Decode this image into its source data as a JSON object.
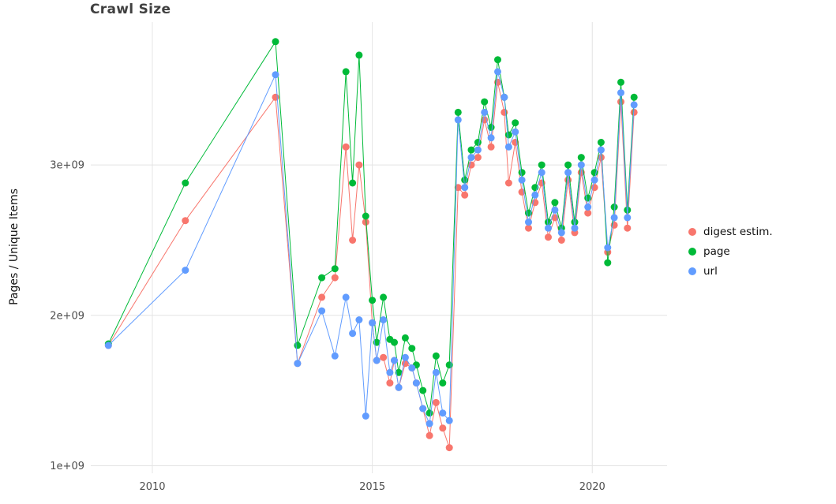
{
  "chart_data": {
    "type": "line",
    "title": "Crawl Size",
    "xlabel": "",
    "ylabel": "Pages / Unique Items",
    "legend_position": "right",
    "grid": true,
    "xlim": [
      2008.6,
      2021.7
    ],
    "ylim": [
      950000000.0,
      3950000000.0
    ],
    "x_ticks": [
      {
        "value": 2010,
        "label": "2010"
      },
      {
        "value": 2015,
        "label": "2015"
      },
      {
        "value": 2020,
        "label": "2020"
      }
    ],
    "y_ticks": [
      {
        "value": 1000000000.0,
        "label": "1e+09"
      },
      {
        "value": 2000000000.0,
        "label": "2e+09"
      },
      {
        "value": 3000000000.0,
        "label": "3e+09"
      }
    ],
    "x": [
      2009.0,
      2010.75,
      2012.8,
      2013.3,
      2013.85,
      2014.15,
      2014.4,
      2014.55,
      2014.7,
      2014.85,
      2015.0,
      2015.1,
      2015.25,
      2015.4,
      2015.5,
      2015.6,
      2015.75,
      2015.9,
      2016.0,
      2016.15,
      2016.3,
      2016.45,
      2016.6,
      2016.75,
      2016.95,
      2017.1,
      2017.25,
      2017.4,
      2017.55,
      2017.7,
      2017.85,
      2018.0,
      2018.1,
      2018.25,
      2018.4,
      2018.55,
      2018.7,
      2018.85,
      2019.0,
      2019.15,
      2019.3,
      2019.45,
      2019.6,
      2019.75,
      2019.9,
      2020.05,
      2020.2,
      2020.35,
      2020.5,
      2020.65,
      2020.8,
      2020.95
    ],
    "series": [
      {
        "name": "digest estim.",
        "color": "#F8766D",
        "values": [
          1800000000.0,
          2630000000.0,
          3450000000.0,
          1680000000.0,
          2120000000.0,
          2250000000.0,
          3120000000.0,
          2500000000.0,
          3000000000.0,
          2620000000.0,
          1950000000.0,
          1700000000.0,
          1720000000.0,
          1550000000.0,
          1700000000.0,
          1520000000.0,
          1680000000.0,
          1650000000.0,
          1550000000.0,
          1380000000.0,
          1200000000.0,
          1420000000.0,
          1250000000.0,
          1120000000.0,
          2850000000.0,
          2800000000.0,
          3000000000.0,
          3050000000.0,
          3300000000.0,
          3120000000.0,
          3550000000.0,
          3350000000.0,
          2880000000.0,
          3150000000.0,
          2820000000.0,
          2580000000.0,
          2750000000.0,
          2880000000.0,
          2520000000.0,
          2650000000.0,
          2500000000.0,
          2900000000.0,
          2550000000.0,
          2950000000.0,
          2680000000.0,
          2850000000.0,
          3050000000.0,
          2420000000.0,
          2600000000.0,
          3420000000.0,
          2580000000.0,
          3350000000.0
        ]
      },
      {
        "name": "page",
        "color": "#00BA38",
        "values": [
          1810000000.0,
          2880000000.0,
          3820000000.0,
          1800000000.0,
          2250000000.0,
          2310000000.0,
          3620000000.0,
          2880000000.0,
          3730000000.0,
          2660000000.0,
          2100000000.0,
          1820000000.0,
          2120000000.0,
          1840000000.0,
          1820000000.0,
          1620000000.0,
          1850000000.0,
          1780000000.0,
          1670000000.0,
          1500000000.0,
          1350000000.0,
          1730000000.0,
          1550000000.0,
          1670000000.0,
          3350000000.0,
          2900000000.0,
          3100000000.0,
          3150000000.0,
          3420000000.0,
          3250000000.0,
          3700000000.0,
          3450000000.0,
          3200000000.0,
          3280000000.0,
          2950000000.0,
          2680000000.0,
          2850000000.0,
          3000000000.0,
          2620000000.0,
          2750000000.0,
          2580000000.0,
          3000000000.0,
          2620000000.0,
          3050000000.0,
          2780000000.0,
          2950000000.0,
          3150000000.0,
          2350000000.0,
          2720000000.0,
          3550000000.0,
          2700000000.0,
          3450000000.0
        ]
      },
      {
        "name": "url",
        "color": "#619CFF",
        "values": [
          1800000000.0,
          2300000000.0,
          3600000000.0,
          1680000000.0,
          2030000000.0,
          1730000000.0,
          2120000000.0,
          1880000000.0,
          1970000000.0,
          1330000000.0,
          1950000000.0,
          1700000000.0,
          1970000000.0,
          1620000000.0,
          1700000000.0,
          1520000000.0,
          1720000000.0,
          1650000000.0,
          1550000000.0,
          1380000000.0,
          1280000000.0,
          1620000000.0,
          1350000000.0,
          1300000000.0,
          3300000000.0,
          2850000000.0,
          3050000000.0,
          3100000000.0,
          3350000000.0,
          3180000000.0,
          3620000000.0,
          3450000000.0,
          3120000000.0,
          3220000000.0,
          2900000000.0,
          2620000000.0,
          2800000000.0,
          2950000000.0,
          2580000000.0,
          2700000000.0,
          2550000000.0,
          2950000000.0,
          2580000000.0,
          3000000000.0,
          2720000000.0,
          2900000000.0,
          3100000000.0,
          2450000000.0,
          2650000000.0,
          3480000000.0,
          2650000000.0,
          3400000000.0
        ]
      }
    ]
  },
  "styles": {
    "grid_color": "#e4e4e4",
    "tick_label_color": "#4d4d4d",
    "point_radius": 4.5,
    "line_width": 1
  }
}
